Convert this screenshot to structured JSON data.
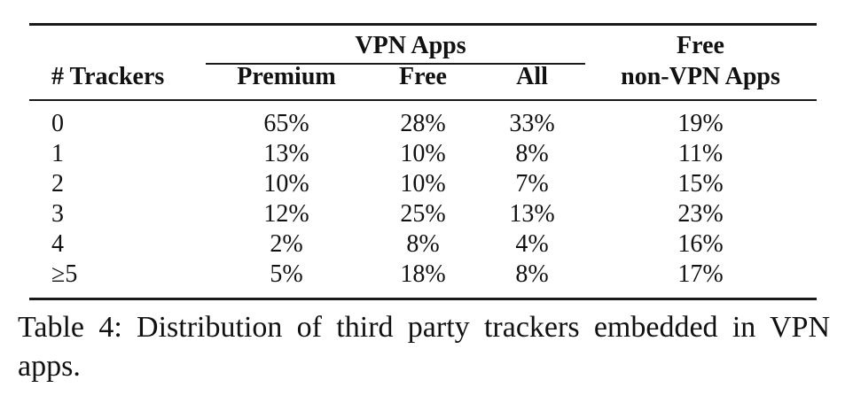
{
  "table": {
    "headers": {
      "trackers": "# Trackers",
      "vpn_group": "VPN Apps",
      "premium": "Premium",
      "free": "Free",
      "all": "All",
      "nonvpn_line1": "Free",
      "nonvpn_line2": "non-VPN Apps"
    },
    "rows": [
      {
        "label": "0",
        "premium": "65%",
        "free": "28%",
        "all": "33%",
        "nonvpn": "19%"
      },
      {
        "label": "1",
        "premium": "13%",
        "free": "10%",
        "all": "8%",
        "nonvpn": "11%"
      },
      {
        "label": "2",
        "premium": "10%",
        "free": "10%",
        "all": "7%",
        "nonvpn": "15%"
      },
      {
        "label": "3",
        "premium": "12%",
        "free": "25%",
        "all": "13%",
        "nonvpn": "23%"
      },
      {
        "label": "4",
        "premium": "2%",
        "free": "8%",
        "all": "4%",
        "nonvpn": "16%"
      },
      {
        "label": "≥5",
        "premium": "5%",
        "free": "18%",
        "all": "8%",
        "nonvpn": "17%"
      }
    ]
  },
  "caption": "Table 4: Distribution of third party trackers embedded in VPN apps."
}
